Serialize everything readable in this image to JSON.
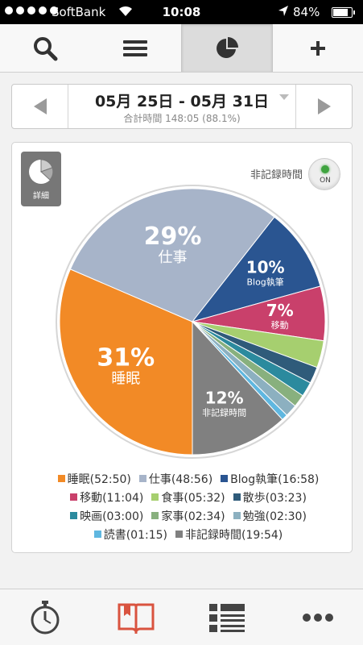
{
  "status_bar": {
    "carrier": "SoftBank",
    "time": "10:08",
    "battery_percent": "84%",
    "battery_level": 0.84,
    "signal_icon": "signal-dots-icon",
    "wifi_icon": "wifi-icon",
    "location_icon": "location-arrow-icon"
  },
  "toolbar": {
    "buttons": [
      {
        "icon": "search-icon",
        "active": false
      },
      {
        "icon": "menu-icon",
        "active": false
      },
      {
        "icon": "pie-chart-icon",
        "active": true
      },
      {
        "icon": "plus-icon",
        "active": false
      }
    ]
  },
  "date_nav": {
    "range": "05月 25日 - 05月 31日",
    "total": "合計時間 148:05 (88.1%)",
    "prev_icon": "chevron-left-icon",
    "next_icon": "chevron-right-icon",
    "dropdown_icon": "triangle-down-icon"
  },
  "card": {
    "detail_label": "詳細",
    "unrecorded_label": "非記録時間",
    "toggle_label": "ON"
  },
  "chart_data": {
    "type": "pie",
    "slices": [
      {
        "label": "睡眠",
        "time": "52:50",
        "percent": 31,
        "value": 52.83,
        "color": "#f28a26",
        "pct_label": "31%"
      },
      {
        "label": "仕事",
        "time": "48:56",
        "percent": 29,
        "value": 48.93,
        "color": "#a7b4c9",
        "pct_label": "29%"
      },
      {
        "label": "Blog執筆",
        "time": "16:58",
        "percent": 10,
        "value": 16.97,
        "color": "#2a5591",
        "pct_label": "10%"
      },
      {
        "label": "移動",
        "time": "11:04",
        "percent": 7,
        "value": 11.07,
        "color": "#c9406b",
        "pct_label": "7%"
      },
      {
        "label": "食事",
        "time": "05:32",
        "percent": 3,
        "value": 5.53,
        "color": "#a6cf6f",
        "pct_label": ""
      },
      {
        "label": "散歩",
        "time": "03:23",
        "percent": 2,
        "value": 3.38,
        "color": "#2f5b7a",
        "pct_label": ""
      },
      {
        "label": "映画",
        "time": "03:00",
        "percent": 2,
        "value": 3.0,
        "color": "#2b8a9e",
        "pct_label": ""
      },
      {
        "label": "家事",
        "time": "02:34",
        "percent": 2,
        "value": 2.57,
        "color": "#88b07e",
        "pct_label": ""
      },
      {
        "label": "勉強",
        "time": "02:30",
        "percent": 1,
        "value": 2.5,
        "color": "#8cb0c0",
        "pct_label": ""
      },
      {
        "label": "読書",
        "time": "01:15",
        "percent": 1,
        "value": 1.25,
        "color": "#5fb7e0",
        "pct_label": ""
      },
      {
        "label": "非記録時間",
        "time": "19:54",
        "percent": 12,
        "value": 19.9,
        "color": "#808080",
        "pct_label": "12%"
      }
    ],
    "legend_rows": [
      [
        0,
        1,
        2
      ],
      [
        3,
        4,
        5
      ],
      [
        6,
        7,
        8
      ],
      [
        9,
        10
      ]
    ]
  },
  "tabbar": {
    "tabs": [
      {
        "icon": "stopwatch-icon",
        "active": false
      },
      {
        "icon": "book-icon",
        "active": true
      },
      {
        "icon": "list-icon",
        "active": false
      },
      {
        "icon": "more-icon",
        "active": false
      }
    ]
  }
}
